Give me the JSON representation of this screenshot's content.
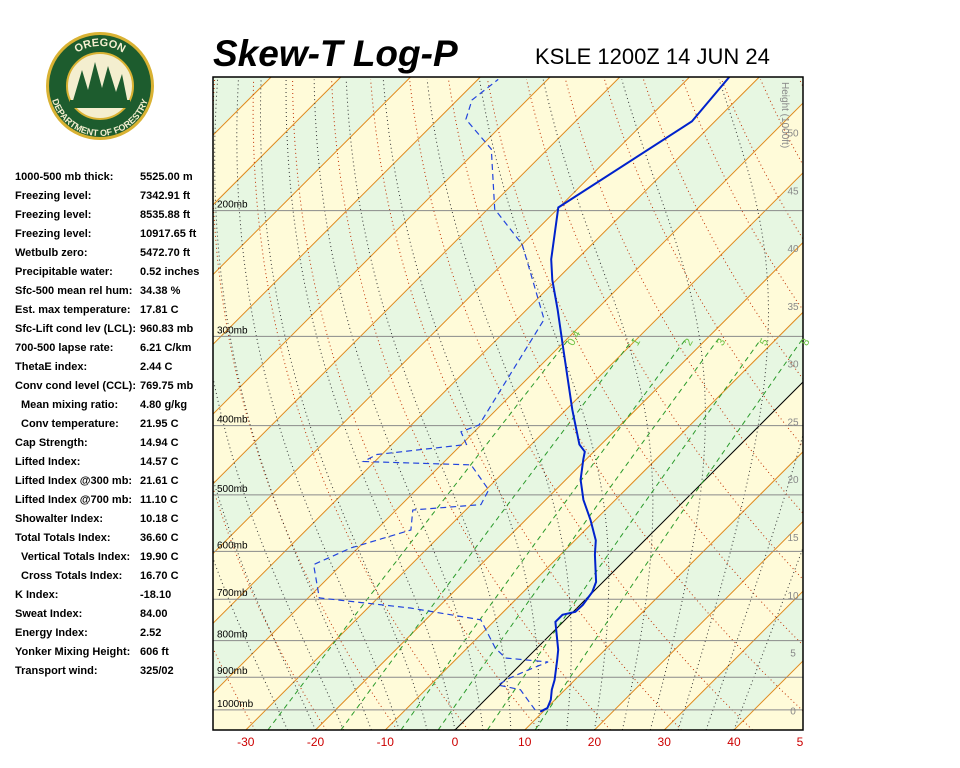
{
  "logo": {
    "top": "OREGON",
    "bottom": "DEPARTMENT OF FORESTRY"
  },
  "stats": [
    {
      "label": "1000-500 mb thick:",
      "value": "5525.00 m"
    },
    {
      "label": "Freezing level:",
      "value": "7342.91 ft"
    },
    {
      "label": "Freezing level:",
      "value": "8535.88 ft"
    },
    {
      "label": "Freezing level:",
      "value": "10917.65 ft"
    },
    {
      "label": "Wetbulb zero:",
      "value": "5472.70 ft"
    },
    {
      "label": "Precipitable water:",
      "value": "0.52 inches"
    },
    {
      "label": "Sfc-500 mean rel hum:",
      "value": "34.38 %"
    },
    {
      "label": "Est. max temperature:",
      "value": "17.81 C"
    },
    {
      "label": "Sfc-Lift cond lev (LCL):",
      "value": "960.83 mb"
    },
    {
      "label": "700-500 lapse rate:",
      "value": "6.21 C/km"
    },
    {
      "label": "ThetaE index:",
      "value": "2.44 C"
    },
    {
      "label": "Conv cond level (CCL):",
      "value": "769.75 mb"
    },
    {
      "label": "Mean mixing ratio:",
      "value": "4.80 g/kg",
      "indent": true
    },
    {
      "label": "Conv temperature:",
      "value": "21.95 C",
      "indent": true
    },
    {
      "label": "Cap Strength:",
      "value": "14.94 C"
    },
    {
      "label": "Lifted Index:",
      "value": "14.57 C"
    },
    {
      "label": "Lifted Index @300 mb:",
      "value": "21.61 C"
    },
    {
      "label": "Lifted Index @700 mb:",
      "value": "11.10 C"
    },
    {
      "label": "Showalter Index:",
      "value": "10.18 C"
    },
    {
      "label": "Total Totals Index:",
      "value": "36.60 C"
    },
    {
      "label": "Vertical Totals Index:",
      "value": "19.90 C",
      "indent": true
    },
    {
      "label": "Cross Totals Index:",
      "value": "16.70 C",
      "indent": true
    },
    {
      "label": "K Index:",
      "value": "-18.10"
    },
    {
      "label": "Sweat Index:",
      "value": "84.00"
    },
    {
      "label": "Energy Index:",
      "value": "2.52"
    },
    {
      "label": "Yonker Mixing Height:",
      "value": "606 ft"
    },
    {
      "label": "Transport wind:",
      "value": "325/02"
    }
  ],
  "chart_data": {
    "type": "skewt",
    "title": "Skew-T Log-P",
    "subtitle": "KSLE 1200Z 14 JUN 24",
    "xlim": [
      -34.7,
      49.9
    ],
    "xticks": [
      -30,
      -20,
      -10,
      0,
      10,
      20,
      30,
      40,
      {
        "value": 50,
        "label": "5"
      }
    ],
    "ylim": [
      1067,
      130
    ],
    "log_y": true,
    "yticks": [
      {
        "value": 1000,
        "label": "1000mb"
      },
      {
        "value": 900,
        "label": "900mb"
      },
      {
        "value": 800,
        "label": "800mb"
      },
      {
        "value": 700,
        "label": "700mb"
      },
      {
        "value": 600,
        "label": "600mb"
      },
      {
        "value": 500,
        "label": "500mb"
      },
      {
        "value": 400,
        "label": "400mb"
      },
      {
        "value": 300,
        "label": "300mb"
      },
      {
        "value": 200,
        "label": "200mb"
      }
    ],
    "y2label": "Height (1000ft)",
    "y2lim": [
      -1.7,
      54.8
    ],
    "y2ticks": [
      0,
      5,
      10,
      15,
      20,
      25,
      30,
      35,
      40,
      45,
      50
    ],
    "mixing_ratio": [
      0.4,
      1,
      2,
      3,
      5,
      8
    ],
    "series": [
      {
        "color": "#0022cc",
        "style": "solid",
        "pressure": [
          1006,
          994,
          968,
          937,
          908,
          851,
          824,
          753,
          736,
          729,
          713,
          684,
          662,
          606,
          579,
          542,
          508,
          476,
          446,
          435,
          425,
          380,
          313,
          275,
          250,
          234,
          198,
          150,
          130
        ],
        "values": [
          9.6,
          10.1,
          9.4,
          8.1,
          7.1,
          4.6,
          3.3,
          -1.1,
          -1.1,
          0.3,
          0.4,
          -0.1,
          -1.0,
          -5.1,
          -7.0,
          -10.7,
          -14.6,
          -17.9,
          -20.4,
          -21.3,
          -23.1,
          -29.1,
          -39.0,
          -45.6,
          -50.6,
          -53.7,
          -60.1,
          -53.3,
          -54.3
        ]
      },
      {
        "color": "#2244dd",
        "style": "dashed",
        "pressure": [
          1000,
          968,
          937,
          923,
          902,
          879,
          857,
          846,
          819,
          748,
          720,
          697,
          626,
          593,
          560,
          525,
          516,
          492,
          454,
          449,
          439,
          425,
          408,
          399,
          284,
          223,
          199,
          164,
          149,
          140,
          131
        ],
        "values": [
          8.6,
          6.1,
          3.6,
          -0.3,
          0.4,
          1.9,
          3.6,
          -3.1,
          -6.0,
          -12.1,
          -23.9,
          -38.4,
          -44.0,
          -41.0,
          -35.0,
          -37.6,
          -28.6,
          -29.6,
          -35.7,
          -51.6,
          -50.7,
          -39.3,
          -41.9,
          -40.3,
          -46.1,
          -60.0,
          -69.0,
          -78.1,
          -86.0,
          -87.9,
          -87.1
        ]
      }
    ]
  }
}
